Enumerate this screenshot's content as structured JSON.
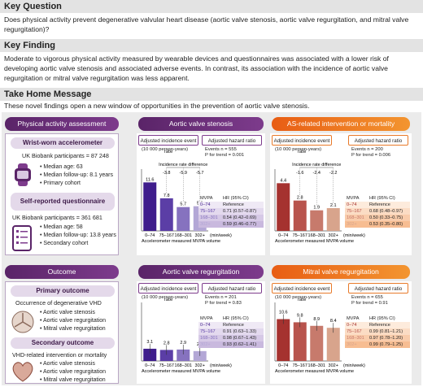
{
  "key_question": {
    "title": "Key Question",
    "text": "Does physical activity prevent degenerative valvular heart disease (aortic valve stenosis, aortic valve regurgitation, and mitral valve regurgitation)?"
  },
  "key_finding": {
    "title": "Key Finding",
    "text": "Moderate to vigorous physical activity measured by wearable devices and questionnaires was associated with a lower risk of developing aortic valve stenosis and associated adverse events. In contrast, its association with the incidence of aortic valve regurgitation or mitral valve regurgitation was less apparent."
  },
  "take_home": {
    "title": "Take Home Message",
    "text": "These novel findings open a new window of opportunities in the prevention of aortic valve stenosis."
  },
  "left": {
    "pa_title": "Physical activity assessment",
    "wrist_title": "Wrist-worn accelerometer",
    "wrist_participants": "UK Biobank participants = 87 248",
    "wrist_bullets": [
      "• Median age: 63",
      "• Median follow-up: 8.1 years",
      "• Primary cohort"
    ],
    "self_title": "Self-reported questionnaire",
    "self_participants": "UK Biobank participants = 361 681",
    "self_bullets": [
      "• Median age: 58",
      "• Median follow-up: 13.8 years",
      "• Secondary cohort"
    ],
    "outcome_title": "Outcome",
    "primary_title": "Primary outcome",
    "primary_text": "Occurrence of degenerative VHD",
    "primary_bullets": [
      "• Aortic valve stenosis",
      "• Aortic valve regurgitation",
      "• Mitral valve regurgitation"
    ],
    "secondary_title": "Secondary outcome",
    "secondary_text": "VHD-related intervention or mortality",
    "secondary_bullets": [
      "• Aortic valve stenosis",
      "• Aortic valve regurgitation",
      "• Mitral valve regurgitation"
    ]
  },
  "common": {
    "adj_rate": "Adjusted incidence event rate",
    "per": "(10 000 person-years)",
    "adj_hr": "Adjusted hazard ratio",
    "xlabel": "Accelerometer measured MVPA volume",
    "unit": "(min/week)",
    "ird": "Incidence rate difference",
    "mvpa": "MVPA",
    "hrci": "HR (95% CI)"
  },
  "chart_data": [
    {
      "type": "bar",
      "title": "Aortic valve stenosis",
      "categories": [
        "0–74",
        "75–167",
        "168–301",
        "302+"
      ],
      "values": [
        11.6,
        7.8,
        5.7,
        5.9
      ],
      "labels": [
        "11.6",
        "7.8",
        "5.7",
        "5.9"
      ],
      "ird": [
        "-3.8",
        "-5.9",
        "-5.7"
      ],
      "events": "Events n = 555",
      "p_trend": "P for trend = 0.001",
      "hr": [
        "Reference",
        "0.71 (0.57–0.87)",
        "0.54 (0.42–0.69)",
        "0.59 (0.46–0.77)"
      ],
      "ylim": [
        0,
        14
      ]
    },
    {
      "type": "bar",
      "title": "AS-related intervention or mortality",
      "categories": [
        "0–74",
        "75–167",
        "168–301",
        "302+"
      ],
      "values": [
        4.4,
        2.8,
        1.9,
        2.1
      ],
      "labels": [
        "4.4",
        "2.8",
        "1.9",
        "2.1"
      ],
      "ird": [
        "-1.6",
        "-2.4",
        "-2.2"
      ],
      "events": "Events n = 200",
      "p_trend": "P for trend = 0.006",
      "hr": [
        "Reference",
        "0.68 (0.48–0.97)",
        "0.50 (0.33–0.75)",
        "0.53 (0.35–0.80)"
      ],
      "ylim": [
        0,
        5.4
      ]
    },
    {
      "type": "bar",
      "title": "Aortic valve regurgitation",
      "categories": [
        "0–74",
        "75–167",
        "168–301",
        "302+"
      ],
      "values": [
        3.1,
        2.8,
        2.9,
        2.5
      ],
      "labels": [
        "3.1",
        "2.8",
        "2.9",
        "2.5"
      ],
      "events": "Events n = 201",
      "p_trend": "P for trend = 0.83",
      "hr": [
        "Reference",
        "0.91 (0.63–1.33)",
        "0.98 (0.67–1.43)",
        "0.93 (0.62–1.41)"
      ],
      "ylim": [
        0,
        14
      ]
    },
    {
      "type": "bar",
      "title": "Mitral valve regurgitation",
      "categories": [
        "0–74",
        "75–167",
        "168–301",
        "302+"
      ],
      "values": [
        10.6,
        9.8,
        8.9,
        8.4
      ],
      "labels": [
        "10.6",
        "9.8",
        "8.9",
        "8.4"
      ],
      "events": "Events n = 655",
      "p_trend": "P for trend = 0.91",
      "hr": [
        "Reference",
        "0.99 (0.81–1.21)",
        "0.97 (0.78–1.20)",
        "0.99 (0.79–1.25)"
      ],
      "ylim": [
        0,
        14
      ]
    }
  ],
  "colors": {
    "purple": "#5a2468",
    "orange": "#e85d14",
    "bars_as": [
      "#3f1d8c",
      "#5b3ea6",
      "#8672bf",
      "#b3a7d6"
    ],
    "bars_mr": [
      "#a5322f",
      "#b8544d",
      "#c77a6c",
      "#d8a48c"
    ]
  }
}
